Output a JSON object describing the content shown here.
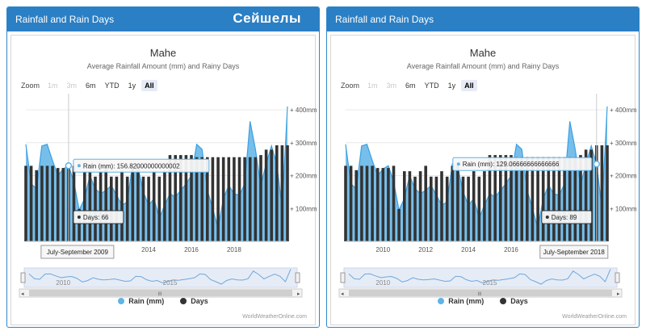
{
  "panels": [
    {
      "header": "Rainfall and Rain Days",
      "overlay_title": "Сейшелы",
      "chart_title": "Mahe",
      "chart_subtitle": "Average Rainfall Amount (mm) and Rainy Days",
      "tooltip_rain": "Rain (mm): 156.82000000000002",
      "tooltip_days": "Days: 66",
      "tooltip_date": "July-September 2009"
    },
    {
      "header": "Rainfall and Rain Days",
      "overlay_title": "",
      "chart_title": "Mahe",
      "chart_subtitle": "Average Rainfall Amount (mm) and Rainy Days",
      "tooltip_rain": "Rain (mm): 129.06666666666666",
      "tooltip_days": "Days: 89",
      "tooltip_date": "July-September 2018"
    }
  ],
  "zoom": {
    "label": "Zoom",
    "buttons": [
      "1m",
      "3m",
      "6m",
      "YTD",
      "1y",
      "All"
    ],
    "disabled": [
      "1m",
      "3m"
    ],
    "selected": "All"
  },
  "legend": {
    "rain_label": "Rain (mm)",
    "days_label": "Days",
    "rain_color": "#5fb4e8",
    "days_color": "#333333"
  },
  "credit": "WorldWeatherOnline.com",
  "navigator_labels": [
    "2010",
    "2015"
  ],
  "scrollbar_grip": "III",
  "chart_data": {
    "type": "area",
    "title": "Mahe",
    "subtitle": "Average Rainfall Amount (mm) and Rainy Days",
    "x_tick_labels": [
      "2010",
      "2012",
      "2014",
      "2016",
      "2018"
    ],
    "y_tick_labels": [
      "+ 100mm",
      "+ 200mm",
      "+ 300mm",
      "+ 400mm"
    ],
    "ylim": [
      0,
      400
    ],
    "series": [
      {
        "name": "Rain (mm)",
        "type": "area",
        "values": [
          295,
          175,
          160,
          290,
          295,
          245,
          200,
          220,
          230,
          180,
          95,
          130,
          200,
          160,
          145,
          155,
          170,
          140,
          110,
          120,
          235,
          225,
          150,
          110,
          130,
          70,
          110,
          145,
          135,
          155,
          175,
          200,
          295,
          280,
          155,
          100,
          40,
          130,
          170,
          145,
          140,
          175,
          365,
          280,
          170,
          235,
          290,
          235,
          100,
          410
        ]
      },
      {
        "name": "Days",
        "type": "bar",
        "values": [
          70,
          70,
          66,
          70,
          70,
          70,
          68,
          68,
          68,
          70,
          30,
          65,
          65,
          60,
          65,
          70,
          60,
          60,
          65,
          60,
          70,
          70,
          60,
          60,
          65,
          60,
          65,
          80,
          80,
          80,
          80,
          80,
          78,
          78,
          78,
          78,
          78,
          78,
          78,
          78,
          78,
          78,
          78,
          78,
          80,
          85,
          85,
          89,
          89,
          89
        ]
      }
    ]
  }
}
